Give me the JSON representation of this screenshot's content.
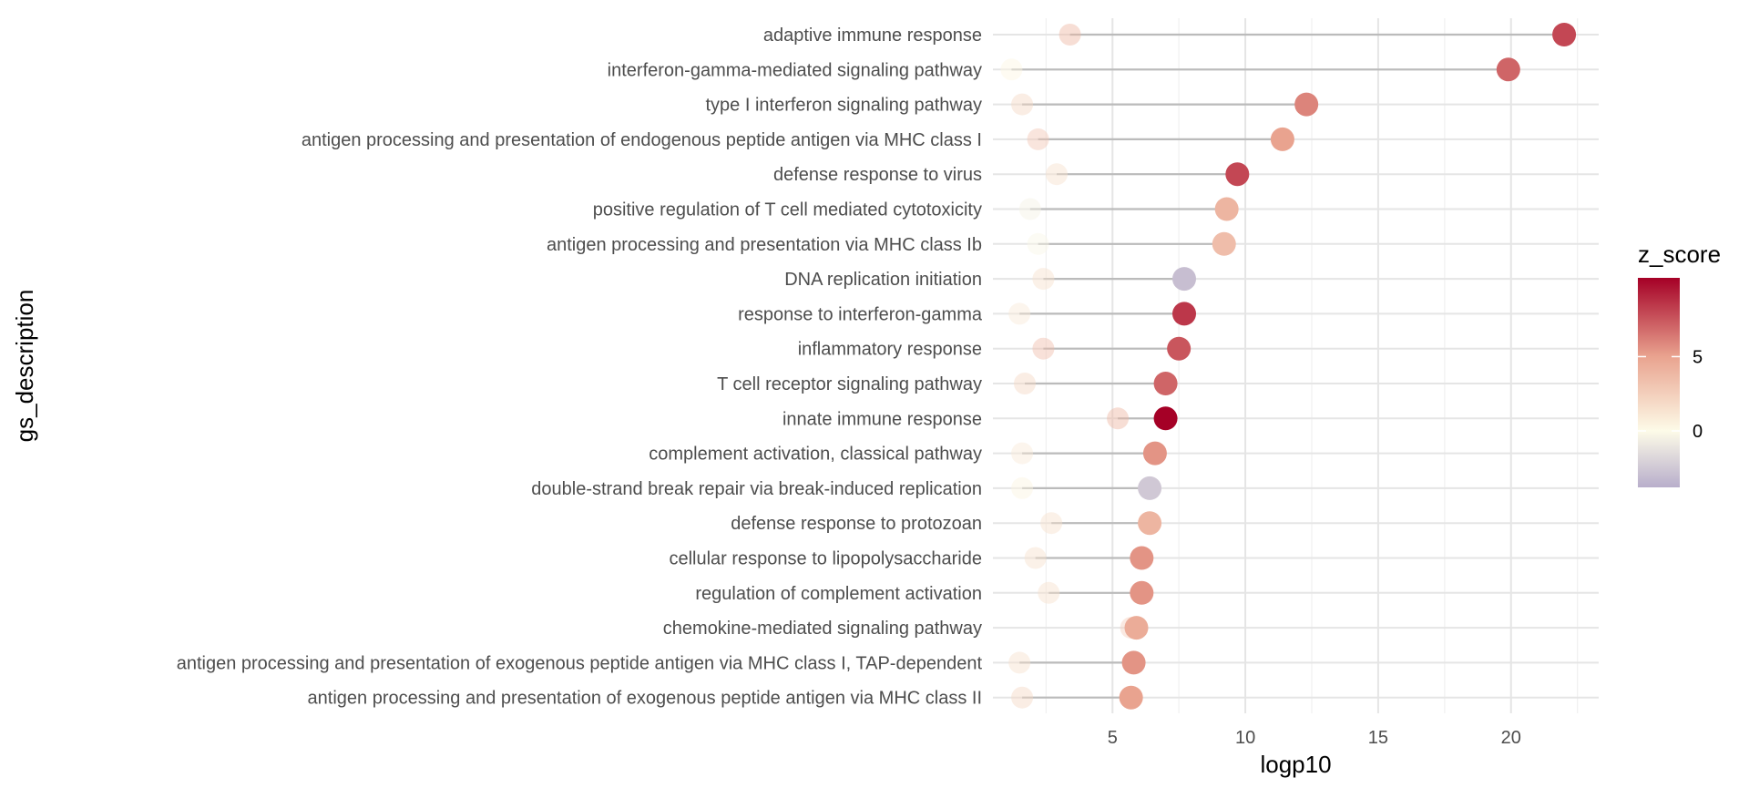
{
  "chart_data": {
    "type": "scatter",
    "subtype": "dumbbell",
    "xlabel": "logp10",
    "ylabel": "gs_description",
    "xlim": [
      0.5,
      23.3
    ],
    "x_ticks": [
      5,
      10,
      15,
      20
    ],
    "x_tick_labels": [
      "5",
      "10",
      "15",
      "20"
    ],
    "grid": true,
    "legend": {
      "title": "z_score",
      "placement": "right",
      "ticks": [
        0,
        5
      ],
      "tick_labels": [
        "0",
        "5"
      ],
      "range": [
        -3.8,
        10.3
      ],
      "colors": [
        {
          "value": -3.8,
          "color": "#b8aecb"
        },
        {
          "value": 0,
          "color": "#fdfbe8"
        },
        {
          "value": 5,
          "color": "#e9a38f"
        },
        {
          "value": 10.3,
          "color": "#a50026"
        }
      ]
    },
    "colors": {
      "connector": "#bbbbbb",
      "grid_major": "#e5e5e5",
      "grid_minor": "#f0f0f0"
    },
    "categories": [
      "adaptive immune response",
      "interferon-gamma-mediated signaling pathway",
      "type I interferon signaling pathway",
      "antigen processing and presentation of endogenous peptide antigen via MHC class I",
      "defense response to virus",
      "positive regulation of T cell mediated cytotoxicity",
      "antigen processing and presentation via MHC class Ib",
      "DNA replication initiation",
      "response to interferon-gamma",
      "inflammatory response",
      "T cell receptor signaling pathway",
      "innate immune response",
      "complement activation, classical pathway",
      "double-strand break repair via break-induced replication",
      "defense response to protozoan",
      "cellular response to lipopolysaccharide",
      "regulation of complement activation",
      "chemokine-mediated signaling pathway",
      "antigen processing and presentation of exogenous peptide antigen via MHC class I, TAP-dependent",
      "antigen processing and presentation of exogenous peptide antigen via MHC class II"
    ],
    "series": [
      {
        "x": [
          3.4,
          1.2,
          1.6,
          2.2,
          2.9,
          1.9,
          2.2,
          2.4,
          1.5,
          2.4,
          1.7,
          5.2,
          1.6,
          1.6,
          2.7,
          2.1,
          2.6,
          5.7,
          1.5,
          1.6
        ],
        "z": [
          4.0,
          0.3,
          2.0,
          3.0,
          1.5,
          -0.5,
          -0.2,
          1.5,
          1.0,
          3.5,
          2.0,
          4.0,
          1.0,
          0.4,
          1.5,
          1.5,
          1.5,
          2.5,
          1.5,
          2.0
        ]
      },
      {
        "x": [
          22.0,
          19.9,
          12.3,
          11.4,
          9.7,
          9.3,
          9.2,
          7.7,
          7.7,
          7.5,
          7.0,
          7.0,
          6.6,
          6.4,
          6.4,
          6.1,
          6.1,
          5.9,
          5.8,
          5.7
        ],
        "z": [
          8.0,
          7.0,
          6.0,
          5.0,
          8.0,
          4.0,
          3.5,
          -3.0,
          8.5,
          7.5,
          7.0,
          10.3,
          5.5,
          -2.5,
          4.0,
          5.5,
          5.5,
          4.5,
          5.5,
          5.0
        ]
      }
    ]
  }
}
